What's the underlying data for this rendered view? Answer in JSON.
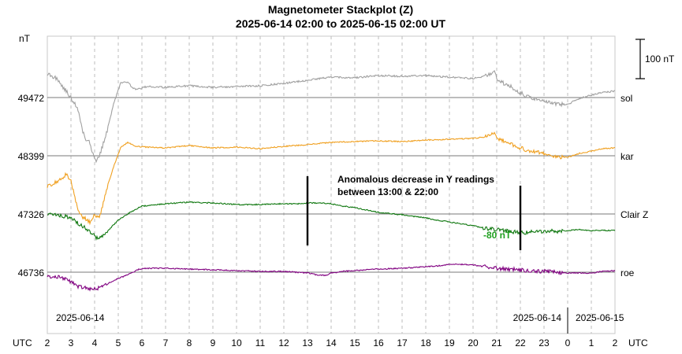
{
  "chart_data": {
    "type": "line",
    "title": "Magnetometer Stackplot (Z)",
    "subtitle": "2025-06-14 02:00 to 2025-06-15 02:00 UT",
    "y_unit": "nT",
    "scale_bar_label": "100 nT",
    "x_axis_left_label": "UTC",
    "x_axis_right_label": "UTC",
    "x_tick_labels": [
      "2",
      "3",
      "4",
      "5",
      "6",
      "7",
      "8",
      "9",
      "10",
      "11",
      "12",
      "13",
      "14",
      "15",
      "16",
      "17",
      "18",
      "19",
      "20",
      "21",
      "22",
      "23",
      "0",
      "1",
      "2"
    ],
    "date_labels": [
      "2025-06-14",
      "2025-06-14",
      "2025-06-15"
    ],
    "series": [
      {
        "name": "sol",
        "baseline": 49472,
        "color": "#a0a0a0",
        "points": [
          [
            0,
            30
          ],
          [
            0.4,
            24
          ],
          [
            0.8,
            8
          ],
          [
            1.1,
            -5
          ],
          [
            1.3,
            -15
          ],
          [
            1.45,
            -38
          ],
          [
            1.6,
            -52
          ],
          [
            1.75,
            -55
          ],
          [
            1.9,
            -68
          ],
          [
            2.05,
            -80
          ],
          [
            2.2,
            -75
          ],
          [
            2.35,
            -60
          ],
          [
            2.55,
            -40
          ],
          [
            2.8,
            -8
          ],
          [
            3.1,
            18
          ],
          [
            3.4,
            20
          ],
          [
            3.6,
            12
          ],
          [
            3.8,
            10
          ],
          [
            4.2,
            14
          ],
          [
            5,
            13
          ],
          [
            6,
            15
          ],
          [
            7,
            13
          ],
          [
            8,
            14
          ],
          [
            9,
            15
          ],
          [
            10,
            18
          ],
          [
            11,
            22
          ],
          [
            12,
            26
          ],
          [
            13,
            25
          ],
          [
            14,
            28
          ],
          [
            15,
            27
          ],
          [
            16,
            28
          ],
          [
            17,
            26
          ],
          [
            18,
            24
          ],
          [
            18.5,
            27
          ],
          [
            18.9,
            33
          ],
          [
            19.05,
            22
          ],
          [
            19.3,
            18
          ],
          [
            19.6,
            14
          ],
          [
            20,
            6
          ],
          [
            20.5,
            -1
          ],
          [
            21,
            -4
          ],
          [
            21.5,
            -8
          ],
          [
            22,
            -9
          ],
          [
            22.3,
            -4
          ],
          [
            22.6,
            0
          ],
          [
            23,
            3
          ],
          [
            23.5,
            7
          ],
          [
            24,
            8
          ]
        ]
      },
      {
        "name": "kar",
        "baseline": 48399,
        "color": "#f0a020",
        "points": [
          [
            0,
            -39
          ],
          [
            0.4,
            -33
          ],
          [
            0.8,
            -24
          ],
          [
            1.0,
            -32
          ],
          [
            1.2,
            -58
          ],
          [
            1.4,
            -76
          ],
          [
            1.6,
            -80
          ],
          [
            1.8,
            -84
          ],
          [
            2.0,
            -74
          ],
          [
            2.2,
            -80
          ],
          [
            2.35,
            -62
          ],
          [
            2.55,
            -38
          ],
          [
            2.8,
            -14
          ],
          [
            3.1,
            10
          ],
          [
            3.4,
            17
          ],
          [
            3.7,
            12
          ],
          [
            4.2,
            11
          ],
          [
            5,
            10
          ],
          [
            6,
            13
          ],
          [
            7,
            10
          ],
          [
            8,
            11
          ],
          [
            9,
            9
          ],
          [
            10,
            12
          ],
          [
            11,
            14
          ],
          [
            12,
            17
          ],
          [
            13,
            18
          ],
          [
            14,
            19
          ],
          [
            15,
            18
          ],
          [
            16,
            20
          ],
          [
            17,
            21
          ],
          [
            18,
            22
          ],
          [
            18.5,
            24
          ],
          [
            18.9,
            30
          ],
          [
            19.05,
            21
          ],
          [
            19.3,
            19
          ],
          [
            19.6,
            15
          ],
          [
            20,
            10
          ],
          [
            20.5,
            5
          ],
          [
            21,
            3
          ],
          [
            21.5,
            -1
          ],
          [
            22,
            -2
          ],
          [
            22.5,
            3
          ],
          [
            23,
            6
          ],
          [
            23.5,
            9
          ],
          [
            24,
            10
          ]
        ]
      },
      {
        "name": "Clair Z",
        "baseline": 47326,
        "color": "#107810",
        "points": [
          [
            0,
            0
          ],
          [
            0.6,
            -2
          ],
          [
            1,
            -5
          ],
          [
            1.4,
            -14
          ],
          [
            1.8,
            -22
          ],
          [
            2.1,
            -31
          ],
          [
            2.3,
            -29
          ],
          [
            2.6,
            -20
          ],
          [
            3,
            -8
          ],
          [
            3.5,
            2
          ],
          [
            4,
            10
          ],
          [
            5,
            13
          ],
          [
            6,
            15
          ],
          [
            7,
            14
          ],
          [
            8,
            12
          ],
          [
            9,
            12
          ],
          [
            10,
            13
          ],
          [
            10.6,
            13
          ],
          [
            11,
            14
          ],
          [
            11.5,
            14
          ],
          [
            12,
            13
          ],
          [
            12.5,
            10
          ],
          [
            13,
            8
          ],
          [
            13.5,
            5
          ],
          [
            14,
            2
          ],
          [
            15,
            -1
          ],
          [
            16,
            -5
          ],
          [
            16.5,
            -8
          ],
          [
            17,
            -10
          ],
          [
            18,
            -15
          ],
          [
            18.5,
            -18
          ],
          [
            19,
            -20
          ],
          [
            19.5,
            -22
          ],
          [
            20,
            -24
          ],
          [
            20.5,
            -23
          ],
          [
            21,
            -22
          ],
          [
            21.5,
            -22
          ],
          [
            22,
            -21
          ],
          [
            22.5,
            -20
          ],
          [
            23,
            -21
          ],
          [
            23.5,
            -21
          ],
          [
            24,
            -21
          ]
        ]
      },
      {
        "name": "roe",
        "baseline": 46736,
        "color": "#800080",
        "points": [
          [
            0,
            -5
          ],
          [
            0.6,
            -7
          ],
          [
            1,
            -12
          ],
          [
            1.3,
            -18
          ],
          [
            1.8,
            -21
          ],
          [
            2.2,
            -20
          ],
          [
            2.5,
            -15
          ],
          [
            3,
            -8
          ],
          [
            3.5,
            -2
          ],
          [
            3.9,
            4
          ],
          [
            4.2,
            5
          ],
          [
            5,
            5
          ],
          [
            6,
            4
          ],
          [
            7,
            3
          ],
          [
            8,
            2
          ],
          [
            9,
            1
          ],
          [
            10,
            1
          ],
          [
            11,
            -1
          ],
          [
            11.5,
            -4
          ],
          [
            11.8,
            -4
          ],
          [
            12,
            -1
          ],
          [
            12.5,
            1
          ],
          [
            13,
            2
          ],
          [
            14,
            4
          ],
          [
            15,
            5
          ],
          [
            16,
            7
          ],
          [
            16.5,
            8
          ],
          [
            17,
            10
          ],
          [
            17.5,
            10
          ],
          [
            18,
            9
          ],
          [
            18.5,
            7
          ],
          [
            19,
            5
          ],
          [
            19.5,
            4
          ],
          [
            20,
            3
          ],
          [
            20.5,
            1
          ],
          [
            21,
            1
          ],
          [
            21.5,
            0
          ],
          [
            22,
            -1
          ],
          [
            22.5,
            -1
          ],
          [
            23,
            -1
          ],
          [
            23.5,
            1
          ],
          [
            24,
            2
          ]
        ]
      }
    ],
    "annotations": {
      "text_line1": "Anomalous decrease in Y readings",
      "text_line2": "between 13:00 & 22:00",
      "delta_label": "-80 nT",
      "delta_color": "#20a020",
      "marker_hours": [
        11,
        20
      ]
    }
  }
}
